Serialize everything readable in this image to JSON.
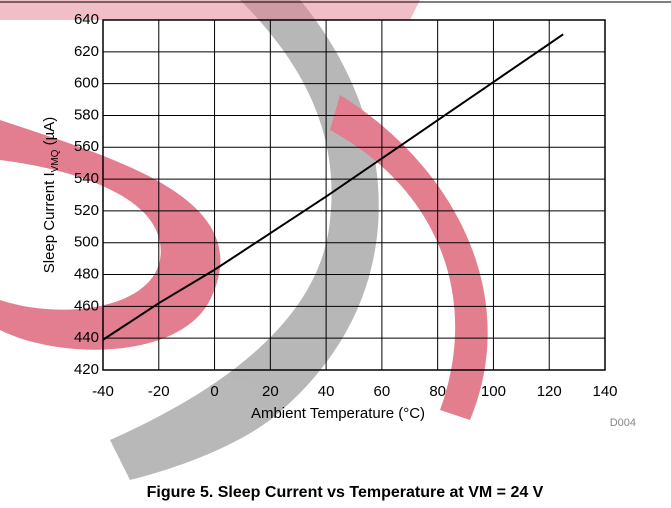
{
  "chart_data": {
    "type": "line",
    "caption": "Figure 5. Sleep Current vs Temperature at VM = 24 V",
    "x_label": "Ambient Temperature (°C)",
    "y_label": {
      "text": "Sleep Current I",
      "subscript": "VMQ",
      "suffix": " (µA)"
    },
    "figure_id": "D004",
    "x": [
      -40,
      -20,
      0,
      20,
      40,
      60,
      80,
      100,
      120,
      125
    ],
    "values": [
      439,
      462,
      483,
      506,
      529,
      553,
      577,
      601,
      625,
      631
    ],
    "color": "#000000",
    "xlim": [
      -40,
      140
    ],
    "xticks": [
      -40,
      -20,
      0,
      20,
      40,
      60,
      80,
      100,
      120,
      140
    ],
    "ylim": [
      420,
      640
    ],
    "yticks": [
      420,
      440,
      460,
      480,
      500,
      520,
      540,
      560,
      580,
      600,
      620,
      640
    ],
    "grid": true
  }
}
